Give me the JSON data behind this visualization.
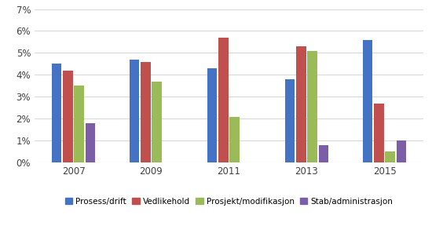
{
  "years": [
    "2007",
    "2009",
    "2011",
    "2013",
    "2015"
  ],
  "series": {
    "Prosess/drift": [
      0.045,
      0.047,
      0.043,
      0.038,
      0.056
    ],
    "Vedlikehold": [
      0.042,
      0.046,
      0.057,
      0.053,
      0.027
    ],
    "Prosjekt/modifikasjon": [
      0.035,
      0.037,
      0.021,
      0.051,
      0.005
    ],
    "Stab/administrasjon": [
      0.018,
      null,
      null,
      0.008,
      0.01
    ]
  },
  "colors": {
    "Prosess/drift": "#4472C4",
    "Vedlikehold": "#C0504D",
    "Prosjekt/modifikasjon": "#9BBB59",
    "Stab/administrasjon": "#7B5EA7"
  },
  "ylim": [
    0,
    0.07
  ],
  "yticks": [
    0,
    0.01,
    0.02,
    0.03,
    0.04,
    0.05,
    0.06,
    0.07
  ],
  "background_color": "#FFFFFF",
  "grid_color": "#D9D9D9"
}
